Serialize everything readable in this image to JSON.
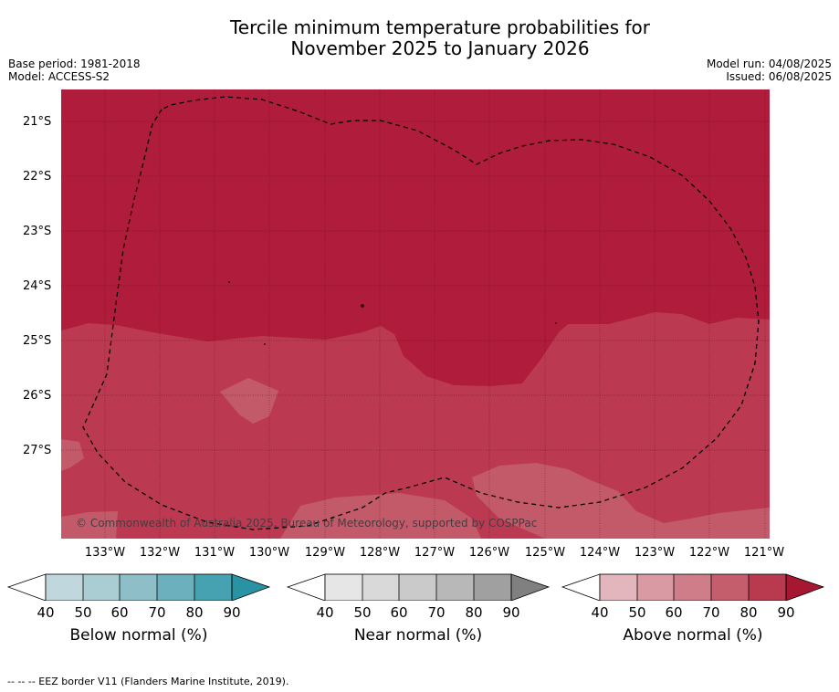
{
  "title": {
    "line1": "Tercile minimum temperature probabilities for",
    "line2": "November 2025 to January 2026"
  },
  "meta": {
    "base_period": "Base period: 1981-2018",
    "model": "Model: ACCESS-S2",
    "model_run": "Model run: 04/08/2025",
    "issued": "Issued: 06/08/2025"
  },
  "map": {
    "latitude_labels": [
      "21°S",
      "22°S",
      "23°S",
      "24°S",
      "25°S",
      "26°S",
      "27°S"
    ],
    "longitude_labels": [
      "133°W",
      "132°W",
      "131°W",
      "130°W",
      "129°W",
      "128°W",
      "127°W",
      "126°W",
      "125°W",
      "124°W",
      "123°W",
      "122°W",
      "121°W"
    ],
    "copyright": "© Commonwealth of Australia 2025, Bureau of Meteorology, supported by COSPPac",
    "colors": {
      "above_90": "#b01c3b",
      "above_80": "#bb3a52",
      "above_70": "#c25a6a"
    }
  },
  "colorbars": [
    {
      "label": "Below normal (%)",
      "ticks": [
        "40",
        "50",
        "60",
        "70",
        "80",
        "90"
      ],
      "colors": [
        "#c0d8dd",
        "#a9cdd3",
        "#8ebec8",
        "#6cafbd",
        "#46a1b0",
        "#2a93a3"
      ]
    },
    {
      "label": "Near normal (%)",
      "ticks": [
        "40",
        "50",
        "60",
        "70",
        "80",
        "90"
      ],
      "colors": [
        "#e6e6e6",
        "#d9d9d9",
        "#cacaca",
        "#b8b8b8",
        "#a0a0a0",
        "#808080"
      ]
    },
    {
      "label": "Above normal (%)",
      "ticks": [
        "40",
        "50",
        "60",
        "70",
        "80",
        "90"
      ],
      "colors": [
        "#e3b5bd",
        "#d99aa4",
        "#cf7d89",
        "#c45e6d",
        "#b93a4f",
        "#a61732"
      ]
    }
  ],
  "footer": "--  --  -- EEZ border V11 (Flanders Marine Institute, 2019)."
}
